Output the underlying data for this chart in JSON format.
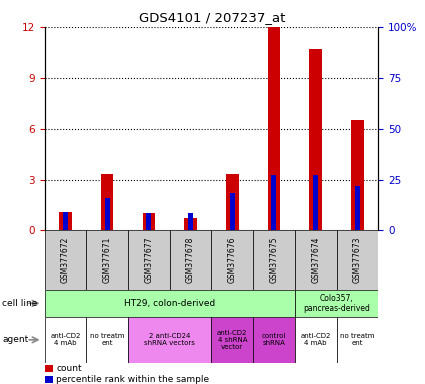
{
  "title": "GDS4101 / 207237_at",
  "samples": [
    "GSM377672",
    "GSM377671",
    "GSM377677",
    "GSM377678",
    "GSM377676",
    "GSM377675",
    "GSM377674",
    "GSM377673"
  ],
  "count_values": [
    1.1,
    3.35,
    1.05,
    0.75,
    3.35,
    12.0,
    10.7,
    6.5
  ],
  "percentile_values": [
    0.09,
    0.16,
    0.085,
    0.085,
    0.185,
    0.27,
    0.27,
    0.22
  ],
  "count_color": "#cc0000",
  "percentile_color": "#0000cc",
  "ylim_left": [
    0,
    12
  ],
  "yticks_left": [
    0,
    3,
    6,
    9,
    12
  ],
  "ytick_labels_left": [
    "0",
    "3",
    "6",
    "9",
    "12"
  ],
  "ytick_labels_right": [
    "0",
    "25",
    "50",
    "75",
    "100%"
  ],
  "cell_line_color": "#aaffaa",
  "agent_white_color": "#ffffff",
  "agent_pink_color": "#ee88ee",
  "agent_purple_color": "#cc44cc",
  "bar_width": 0.3,
  "percentile_bar_width": 0.12,
  "count_color_left": "#cc0000",
  "count_color_right": "#0000cc"
}
